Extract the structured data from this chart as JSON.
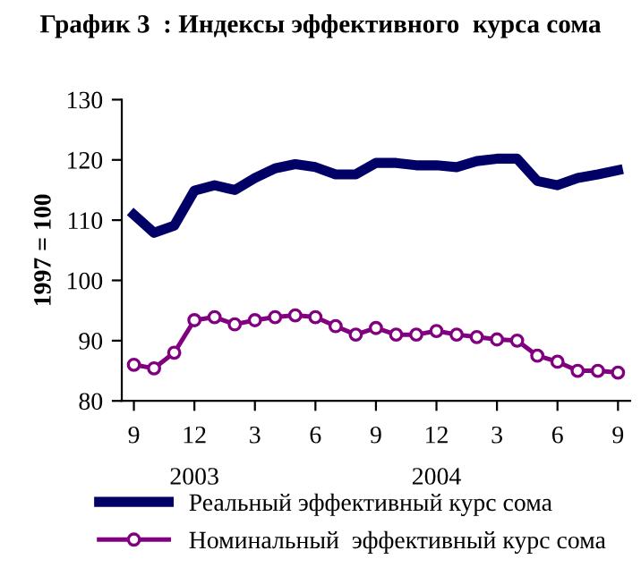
{
  "chart_data": {
    "type": "line",
    "title": "График 3  : Индексы эффективного  курса сома",
    "ylabel": "1997 = 100",
    "categories": [
      "9",
      null,
      null,
      "12",
      null,
      null,
      "3",
      null,
      null,
      "6",
      null,
      null,
      "9",
      null,
      null,
      "12",
      null,
      null,
      "3",
      null,
      null,
      "6",
      null,
      null,
      "9"
    ],
    "series": [
      {
        "name": "Реальный эффективный курс сома",
        "color": "#000066",
        "marker": "none",
        "values": [
          110.9,
          107.9,
          109.1,
          114.9,
          115.8,
          115.0,
          117.0,
          118.6,
          119.3,
          118.8,
          117.6,
          117.6,
          119.5,
          119.5,
          119.1,
          119.1,
          118.8,
          119.8,
          120.2,
          120.2,
          116.5,
          115.8,
          117.0,
          117.6,
          118.3
        ]
      },
      {
        "name": "Номинальный  эффективный курс сома",
        "color": "#800080",
        "marker": "circle",
        "values": [
          86.0,
          85.4,
          88.0,
          93.4,
          93.9,
          92.7,
          93.4,
          93.9,
          94.2,
          93.9,
          92.4,
          91.0,
          92.1,
          91.0,
          91.0,
          91.6,
          91.0,
          90.6,
          90.2,
          90.0,
          87.5,
          86.5,
          85.0,
          85.0,
          84.7
        ]
      }
    ],
    "ylim": [
      80,
      130
    ],
    "yticks": [
      80,
      90,
      100,
      110,
      120,
      130
    ],
    "grid": false,
    "legend": "bottom",
    "line_style": "solid",
    "annotations": [
      "2003",
      "2004"
    ]
  }
}
